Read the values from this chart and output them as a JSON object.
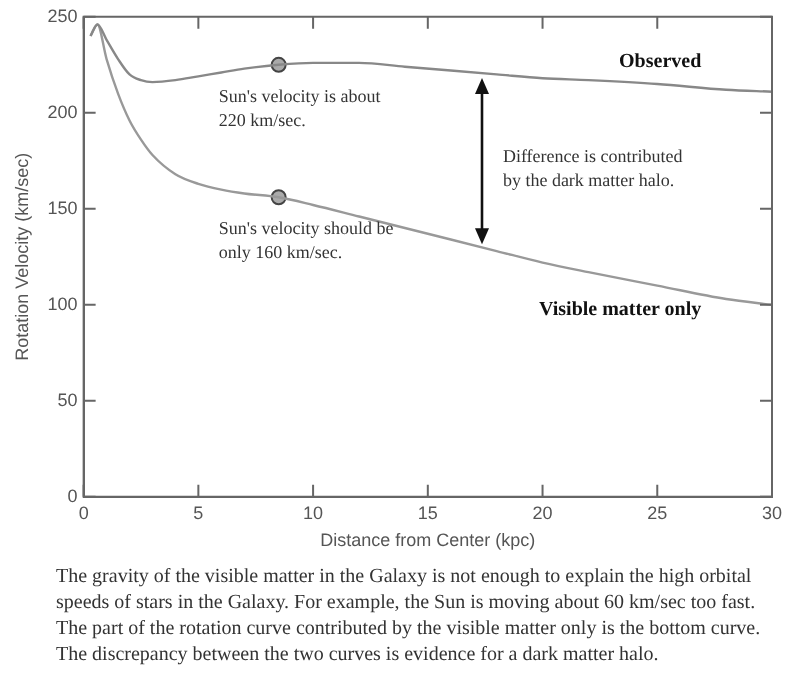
{
  "chart_data": {
    "type": "line",
    "xlabel": "Distance from Center (kpc)",
    "ylabel": "Rotation Velocity (km/sec)",
    "xlim": [
      0,
      30
    ],
    "xticks": [
      0,
      5,
      10,
      15,
      20,
      25,
      30
    ],
    "ylim": [
      0,
      250
    ],
    "yticks": [
      0,
      50,
      100,
      150,
      200,
      250
    ],
    "grid": false,
    "legend": false,
    "line_style": "solid",
    "series": [
      {
        "name": "Observed",
        "color": "#888888",
        "marker": "none",
        "x": [
          0.3,
          0.6,
          1,
          1.5,
          2,
          2.5,
          3,
          4,
          5,
          6,
          7,
          8.5,
          10,
          12,
          14,
          16,
          18,
          20,
          22,
          25,
          28,
          30
        ],
        "values": [
          240,
          246,
          238,
          228,
          220,
          217,
          216,
          217,
          219,
          221,
          223,
          225,
          226,
          226,
          224,
          222,
          220,
          218,
          217,
          215,
          212,
          211
        ]
      },
      {
        "name": "Visible matter only",
        "color": "#999999",
        "marker": "none",
        "x": [
          0.3,
          0.6,
          1,
          1.5,
          2,
          2.5,
          3,
          4,
          5,
          6,
          7,
          8.5,
          10,
          12,
          14,
          16,
          18,
          20,
          22,
          25,
          28,
          30
        ],
        "values": [
          240,
          246,
          228,
          210,
          196,
          186,
          178,
          168,
          163,
          160,
          158,
          156,
          152,
          146,
          140,
          134,
          128,
          122,
          117,
          110,
          103,
          100
        ]
      },
      {
        "type": "scatter",
        "color": "#aaaaaa",
        "marker": "circle",
        "x": [
          8.5,
          8.5
        ],
        "values": [
          225,
          156
        ]
      }
    ],
    "annotations": [
      "Sun's velocity is about 220 km/sec.",
      "Sun's velocity should be only 160 km/sec.",
      "Difference is contributed by the dark matter halo.",
      "The gravity of the visible matter in the Galaxy is not enough to explain the high orbital speeds of stars in the Galaxy. For example, the Sun is moving about 60 km/sec too fast. The part of the rotation curve contributed by the visible matter only is the bottom curve. The discrepancy between the two curves is evidence for a dark matter halo."
    ]
  }
}
